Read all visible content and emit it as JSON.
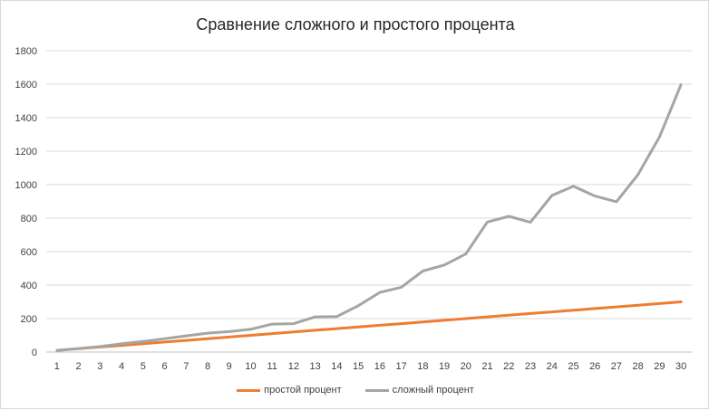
{
  "chart_data": {
    "type": "line",
    "title": "Сравнение сложного и простого процента",
    "x": [
      1,
      2,
      3,
      4,
      5,
      6,
      7,
      8,
      9,
      10,
      11,
      12,
      13,
      14,
      15,
      16,
      17,
      18,
      19,
      20,
      21,
      22,
      23,
      24,
      25,
      26,
      27,
      28,
      29,
      30
    ],
    "ylim": [
      0,
      1800
    ],
    "yticks": [
      0,
      200,
      400,
      600,
      800,
      1000,
      1200,
      1400,
      1600,
      1800
    ],
    "grid": true,
    "legend": "bottom",
    "series": [
      {
        "name": "простой процент",
        "color": "#ed7d31",
        "values": [
          10,
          20,
          30,
          40,
          50,
          60,
          70,
          80,
          90,
          100,
          110,
          120,
          130,
          140,
          150,
          160,
          170,
          180,
          190,
          200,
          210,
          220,
          230,
          240,
          250,
          260,
          270,
          280,
          290,
          300
        ]
      },
      {
        "name": "сложный процент",
        "color": "#a5a5a5",
        "values": [
          10,
          21,
          33,
          50,
          63,
          80,
          97,
          113,
          122,
          136,
          167,
          170,
          210,
          212,
          277,
          356,
          387,
          484,
          520,
          586,
          777,
          811,
          775,
          935,
          990,
          932,
          898,
          1060,
          1285,
          1597
        ]
      }
    ]
  }
}
